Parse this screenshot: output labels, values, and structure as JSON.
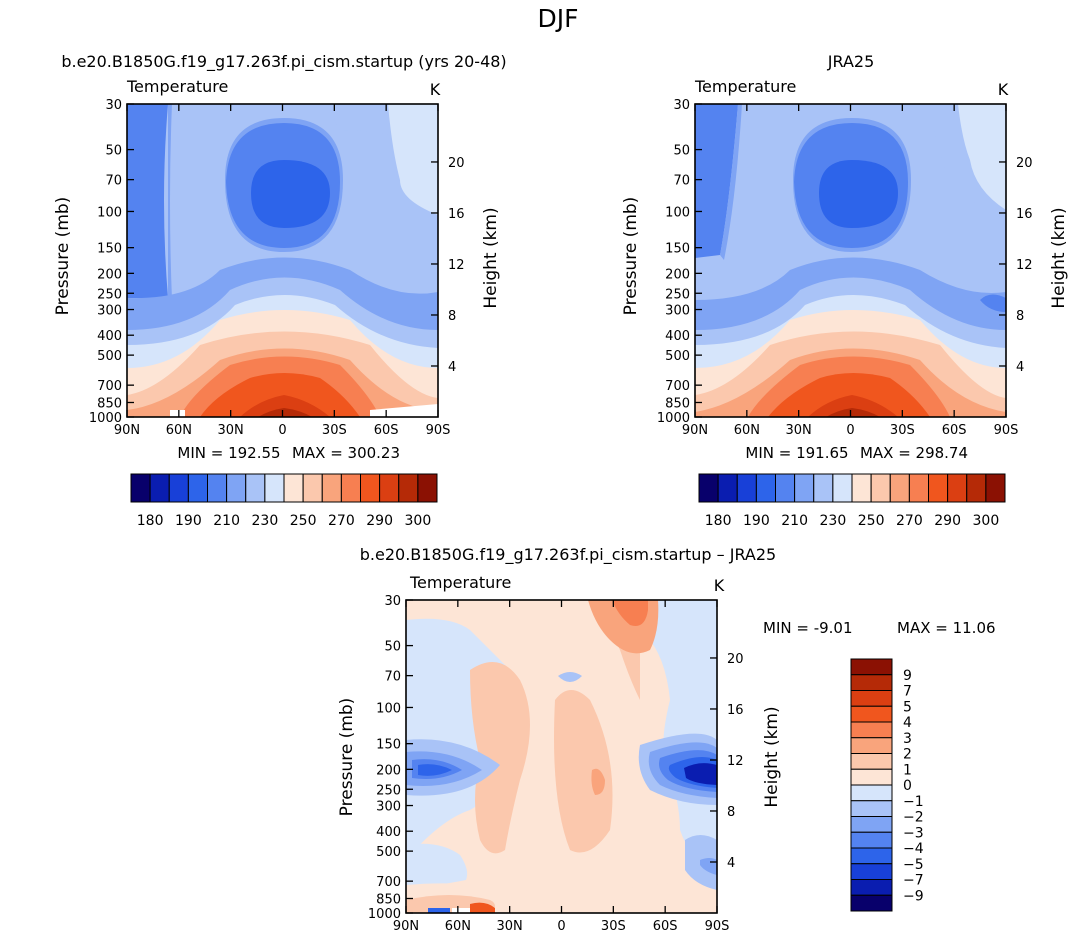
{
  "figure_title": "DJF",
  "chart_data": [
    {
      "type": "contour",
      "title": "b.e20.B1850G.f19_g17.263f.pi_cism.startup (yrs 20-48)",
      "field_label": "Temperature",
      "units": "K",
      "xlabel": "",
      "ylabel": "Pressure (mb)",
      "ylabel_right": "Height (km)",
      "x_ticks": [
        "90N",
        "60N",
        "30N",
        "0",
        "30S",
        "60S",
        "90S"
      ],
      "y_ticks": [
        30,
        50,
        70,
        100,
        150,
        200,
        250,
        300,
        400,
        500,
        700,
        850,
        1000
      ],
      "height_ticks": [
        4,
        8,
        12,
        16,
        20
      ],
      "ylim": [
        1000,
        30
      ],
      "min_label": "MIN = 192.55",
      "max_label": "MAX = 300.23",
      "colorbar_labels": [
        "180",
        "190",
        "210",
        "230",
        "250",
        "270",
        "290",
        "300"
      ]
    },
    {
      "type": "contour",
      "title": "JRA25",
      "field_label": "Temperature",
      "units": "K",
      "xlabel": "",
      "ylabel": "Pressure (mb)",
      "ylabel_right": "Height (km)",
      "x_ticks": [
        "90N",
        "60N",
        "30N",
        "0",
        "30S",
        "60S",
        "90S"
      ],
      "y_ticks": [
        30,
        50,
        70,
        100,
        150,
        200,
        250,
        300,
        400,
        500,
        700,
        850,
        1000
      ],
      "height_ticks": [
        4,
        8,
        12,
        16,
        20
      ],
      "ylim": [
        1000,
        30
      ],
      "min_label": "MIN = 191.65",
      "max_label": "MAX = 298.74",
      "colorbar_labels": [
        "180",
        "190",
        "210",
        "230",
        "250",
        "270",
        "290",
        "300"
      ]
    },
    {
      "type": "contour",
      "title": "b.e20.B1850G.f19_g17.263f.pi_cism.startup – JRA25",
      "field_label": "Temperature",
      "units": "K",
      "xlabel": "",
      "ylabel": "Pressure (mb)",
      "ylabel_right": "Height (km)",
      "x_ticks": [
        "90N",
        "60N",
        "30N",
        "0",
        "30S",
        "60S",
        "90S"
      ],
      "y_ticks": [
        30,
        50,
        70,
        100,
        150,
        200,
        250,
        300,
        400,
        500,
        700,
        850,
        1000
      ],
      "height_ticks": [
        4,
        8,
        12,
        16,
        20
      ],
      "ylim": [
        1000,
        30
      ],
      "min_label": "MIN =  -9.01",
      "max_label": "MAX =  11.06",
      "colorbar_labels": [
        "9",
        "7",
        "5",
        "4",
        "3",
        "2",
        "1",
        "0",
        "−1",
        "−2",
        "−3",
        "−4",
        "−5",
        "−7",
        "−9"
      ]
    }
  ],
  "colors": {
    "main_scale": [
      "#08006b",
      "#0a1db0",
      "#1840d8",
      "#2d64ea",
      "#5483f0",
      "#7fa4f4",
      "#a9c3f7",
      "#d6e5fb",
      "#fde5d6",
      "#fbc8ad",
      "#f9a47c",
      "#f77f51",
      "#f0561e",
      "#db3f12",
      "#b52a07",
      "#8b1103"
    ],
    "diff_scale": [
      "#8b1103",
      "#b52a07",
      "#db3f12",
      "#f0561e",
      "#f77f51",
      "#f9a47c",
      "#fbc8ad",
      "#fde5d6",
      "#d6e5fb",
      "#a9c3f7",
      "#7fa4f4",
      "#5483f0",
      "#2d64ea",
      "#1840d8",
      "#0a1db0",
      "#08006b"
    ]
  }
}
